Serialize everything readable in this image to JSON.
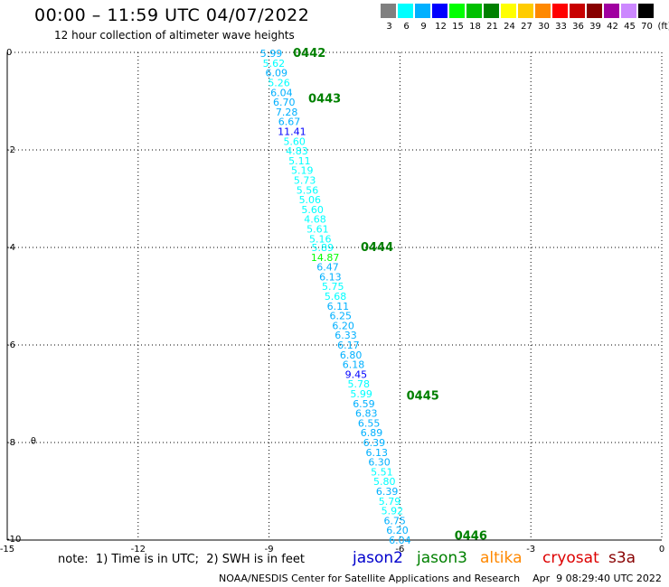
{
  "header": {
    "title": "00:00 – 11:59 UTC 04/07/2022",
    "subtitle": "12 hour collection of altimeter wave heights"
  },
  "legend": {
    "unit": "(ft)",
    "bins": [
      {
        "label": "3",
        "color": "#808080"
      },
      {
        "label": "6",
        "color": "#00ffff"
      },
      {
        "label": "9",
        "color": "#00b0ff"
      },
      {
        "label": "12",
        "color": "#0000ff"
      },
      {
        "label": "15",
        "color": "#00ff00"
      },
      {
        "label": "18",
        "color": "#00c000"
      },
      {
        "label": "21",
        "color": "#008000"
      },
      {
        "label": "24",
        "color": "#ffff00"
      },
      {
        "label": "27",
        "color": "#ffcc00"
      },
      {
        "label": "30",
        "color": "#ff8800"
      },
      {
        "label": "33",
        "color": "#ff0000"
      },
      {
        "label": "36",
        "color": "#c80000"
      },
      {
        "label": "39",
        "color": "#880000"
      },
      {
        "label": "42",
        "color": "#a000a0"
      },
      {
        "label": "45",
        "color": "#cc88ff"
      },
      {
        "label": "70",
        "color": "#000000"
      }
    ]
  },
  "map": {
    "lon_range": [
      -15,
      0
    ],
    "lat_range": [
      -10,
      0
    ],
    "x_ticks": [
      "-15",
      "-12",
      "-9",
      "-6",
      "-3",
      "0"
    ],
    "y_ticks": [
      "0",
      "-2",
      "-4",
      "-6",
      "-8",
      "-10"
    ],
    "island_marker": "θ",
    "pass_times": [
      {
        "label": "0442",
        "lon": -8.45,
        "lat": -0.02
      },
      {
        "label": "0443",
        "lon": -8.1,
        "lat": -0.95
      },
      {
        "label": "0444",
        "lon": -6.9,
        "lat": -4.0
      },
      {
        "label": "0445",
        "lon": -5.85,
        "lat": -7.05
      },
      {
        "label": "0446",
        "lon": -4.75,
        "lat": -9.92
      }
    ],
    "track": [
      {
        "lat": -0.02,
        "v": "5.99",
        "c": "#00b0ff"
      },
      {
        "lat": -0.22,
        "v": "5.62",
        "c": "#00ffff"
      },
      {
        "lat": -0.42,
        "v": "6.09",
        "c": "#00b0ff"
      },
      {
        "lat": -0.62,
        "v": "5.26",
        "c": "#00ffff"
      },
      {
        "lat": -0.82,
        "v": "6.04",
        "c": "#00b0ff"
      },
      {
        "lat": -1.02,
        "v": "6.70",
        "c": "#00b0ff"
      },
      {
        "lat": -1.22,
        "v": "7.28",
        "c": "#00b0ff"
      },
      {
        "lat": -1.42,
        "v": "6.67",
        "c": "#00b0ff"
      },
      {
        "lat": -1.62,
        "v": "11.41",
        "c": "#0000ff"
      },
      {
        "lat": -1.82,
        "v": "5.60",
        "c": "#00ffff"
      },
      {
        "lat": -2.02,
        "v": "4.83",
        "c": "#00ffff"
      },
      {
        "lat": -2.22,
        "v": "5.11",
        "c": "#00ffff"
      },
      {
        "lat": -2.42,
        "v": "5.19",
        "c": "#00ffff"
      },
      {
        "lat": -2.62,
        "v": "5.73",
        "c": "#00ffff"
      },
      {
        "lat": -2.82,
        "v": "5.56",
        "c": "#00ffff"
      },
      {
        "lat": -3.02,
        "v": "5.06",
        "c": "#00ffff"
      },
      {
        "lat": -3.22,
        "v": "5.60",
        "c": "#00ffff"
      },
      {
        "lat": -3.42,
        "v": "4.68",
        "c": "#00ffff"
      },
      {
        "lat": -3.62,
        "v": "5.61",
        "c": "#00ffff"
      },
      {
        "lat": -3.82,
        "v": "5.16",
        "c": "#00ffff"
      },
      {
        "lat": -4.0,
        "v": "5.89",
        "c": "#00ffff"
      },
      {
        "lat": -4.2,
        "v": "14.87",
        "c": "#00ff00"
      },
      {
        "lat": -4.4,
        "v": "6.47",
        "c": "#00b0ff"
      },
      {
        "lat": -4.6,
        "v": "6.13",
        "c": "#00b0ff"
      },
      {
        "lat": -4.8,
        "v": "5.75",
        "c": "#00ffff"
      },
      {
        "lat": -5.0,
        "v": "5.68",
        "c": "#00ffff"
      },
      {
        "lat": -5.2,
        "v": "6.11",
        "c": "#00b0ff"
      },
      {
        "lat": -5.4,
        "v": "6.25",
        "c": "#00b0ff"
      },
      {
        "lat": -5.6,
        "v": "6.20",
        "c": "#00b0ff"
      },
      {
        "lat": -5.8,
        "v": "6.33",
        "c": "#00b0ff"
      },
      {
        "lat": -6.0,
        "v": "6.17",
        "c": "#00b0ff"
      },
      {
        "lat": -6.2,
        "v": "6.80",
        "c": "#00b0ff"
      },
      {
        "lat": -6.4,
        "v": "6.18",
        "c": "#00b0ff"
      },
      {
        "lat": -6.6,
        "v": "9.45",
        "c": "#0000ff"
      },
      {
        "lat": -6.8,
        "v": "5.78",
        "c": "#00ffff"
      },
      {
        "lat": -7.0,
        "v": "5.99",
        "c": "#00ffff"
      },
      {
        "lat": -7.2,
        "v": "6.59",
        "c": "#00b0ff"
      },
      {
        "lat": -7.4,
        "v": "6.83",
        "c": "#00b0ff"
      },
      {
        "lat": -7.6,
        "v": "6.55",
        "c": "#00b0ff"
      },
      {
        "lat": -7.8,
        "v": "6.89",
        "c": "#00b0ff"
      },
      {
        "lat": -8.0,
        "v": "6.39",
        "c": "#00b0ff"
      },
      {
        "lat": -8.2,
        "v": "6.13",
        "c": "#00b0ff"
      },
      {
        "lat": -8.4,
        "v": "6.30",
        "c": "#00b0ff"
      },
      {
        "lat": -8.6,
        "v": "5.51",
        "c": "#00ffff"
      },
      {
        "lat": -8.8,
        "v": "5.80",
        "c": "#00ffff"
      },
      {
        "lat": -9.0,
        "v": "6.39",
        "c": "#00b0ff"
      },
      {
        "lat": -9.2,
        "v": "5.79",
        "c": "#00ffff"
      },
      {
        "lat": -9.4,
        "v": "5.92",
        "c": "#00ffff"
      },
      {
        "lat": -9.6,
        "v": "6.75",
        "c": "#00b0ff"
      },
      {
        "lat": -9.8,
        "v": "6.20",
        "c": "#00b0ff"
      },
      {
        "lat": -10.0,
        "v": "6.04",
        "c": "#00b0ff"
      }
    ]
  },
  "note": "note:  1) Time is in UTC;  2) SWH is in feet",
  "satellites": [
    {
      "name": "jason2",
      "color": "#0000cc"
    },
    {
      "name": "jason3",
      "color": "#008000"
    },
    {
      "name": "altika",
      "color": "#ff8800"
    },
    {
      "name": "cryosat",
      "color": "#dd0000"
    },
    {
      "name": "s3a",
      "color": "#880000"
    }
  ],
  "footer": "NOAA/NESDIS Center for Satellite Applications and Research    Apr  9 08:29:40 UTC 2022"
}
